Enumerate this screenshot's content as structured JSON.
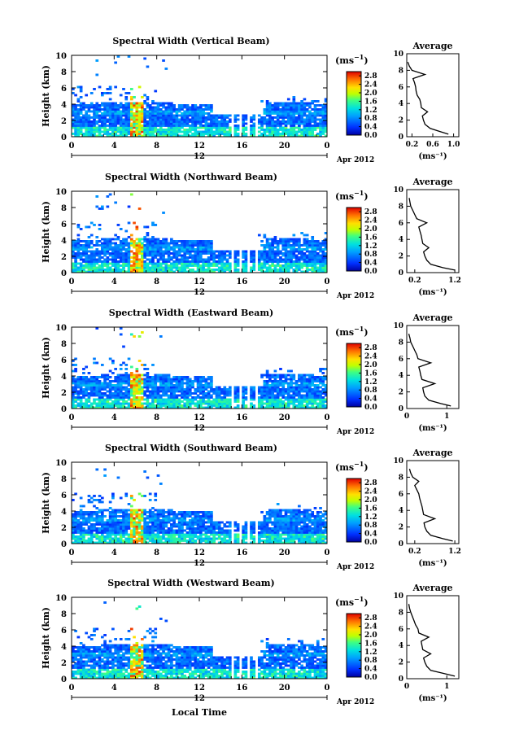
{
  "figure": {
    "x_axis_label": "Local Time",
    "colorbar_unit_base": "(ms",
    "colorbar_unit_exp": "−1",
    "colorbar_unit_close": ")",
    "average_title": "Average",
    "average_unit": "(ms⁻¹)",
    "height_label": "Height (km)",
    "date_center": "12",
    "date_right": "Apr 2012"
  },
  "chart_data": [
    {
      "type": "heatmap",
      "title": "Spectral Width (Vertical Beam)",
      "xlabel": "",
      "ylabel": "Height (km)",
      "xlim": [
        0,
        24
      ],
      "ylim": [
        0,
        10
      ],
      "x_ticks": [
        "0",
        "4",
        "8",
        "12",
        "16",
        "20",
        "0"
      ],
      "y_ticks": [
        "0",
        "2",
        "4",
        "6",
        "8",
        "10"
      ],
      "colorbar": {
        "unit": "(ms⁻¹)",
        "ticks": [
          "0.0",
          "0.4",
          "0.8",
          "1.2",
          "1.6",
          "2.0",
          "2.4",
          "2.8"
        ],
        "range": [
          0,
          3.0
        ]
      },
      "average_profile": {
        "title": "Average",
        "xlabel": "(ms⁻¹)",
        "xlim": [
          0.1,
          1.1
        ],
        "x_ticks": [
          "0.2",
          "0.6",
          "1.0"
        ],
        "height": [
          0.3,
          0.6,
          1.0,
          1.5,
          2.0,
          2.5,
          3.0,
          3.5,
          4.0,
          4.5,
          5.0,
          5.5,
          6.0,
          6.5,
          7.0,
          7.5,
          8.0,
          8.5,
          9.0
        ],
        "width": [
          0.9,
          0.75,
          0.55,
          0.45,
          0.42,
          0.4,
          0.5,
          0.38,
          0.37,
          0.35,
          0.3,
          0.28,
          0.27,
          0.25,
          0.22,
          0.45,
          0.2,
          0.15,
          0.12
        ]
      }
    },
    {
      "type": "heatmap",
      "title": "Spectral Width (Northward Beam)",
      "xlabel": "",
      "ylabel": "Height (km)",
      "xlim": [
        0,
        24
      ],
      "ylim": [
        0,
        10
      ],
      "x_ticks": [
        "0",
        "4",
        "8",
        "12",
        "16",
        "20",
        "0"
      ],
      "y_ticks": [
        "0",
        "2",
        "4",
        "6",
        "8",
        "10"
      ],
      "colorbar": {
        "unit": "(ms⁻¹)",
        "ticks": [
          "0.0",
          "0.4",
          "0.8",
          "1.2",
          "1.6",
          "2.0",
          "2.4",
          "2.8"
        ],
        "range": [
          0,
          3.0
        ]
      },
      "average_profile": {
        "title": "Average",
        "xlabel": "(ms⁻¹)",
        "xlim": [
          0.0,
          1.3
        ],
        "x_ticks": [
          "0.2",
          "1.2"
        ],
        "height": [
          0.3,
          0.6,
          1.0,
          1.5,
          2.0,
          2.5,
          3.0,
          3.5,
          4.0,
          4.5,
          5.0,
          5.5,
          6.0,
          6.5,
          7.0,
          7.5,
          8.0,
          8.5,
          9.0
        ],
        "width": [
          1.2,
          0.9,
          0.6,
          0.5,
          0.45,
          0.42,
          0.55,
          0.4,
          0.38,
          0.36,
          0.33,
          0.3,
          0.5,
          0.25,
          0.2,
          0.15,
          0.1,
          0.08,
          0.06
        ]
      }
    },
    {
      "type": "heatmap",
      "title": "Spectral Width (Eastward Beam)",
      "xlabel": "",
      "ylabel": "Height (km)",
      "xlim": [
        0,
        24
      ],
      "ylim": [
        0,
        10
      ],
      "x_ticks": [
        "0",
        "4",
        "8",
        "12",
        "16",
        "20",
        "0"
      ],
      "y_ticks": [
        "0",
        "2",
        "4",
        "6",
        "8",
        "10"
      ],
      "colorbar": {
        "unit": "(ms⁻¹)",
        "ticks": [
          "0.0",
          "0.4",
          "0.8",
          "1.2",
          "1.6",
          "2.0",
          "2.4",
          "2.8"
        ],
        "range": [
          0,
          3.0
        ]
      },
      "average_profile": {
        "title": "Average",
        "xlabel": "(ms⁻¹)",
        "xlim": [
          0.0,
          1.3
        ],
        "x_ticks": [
          "0",
          "1"
        ],
        "height": [
          0.3,
          0.6,
          1.0,
          1.5,
          2.0,
          2.5,
          3.0,
          3.5,
          4.0,
          4.5,
          5.0,
          5.5,
          6.0,
          6.5,
          7.0,
          7.5,
          8.0,
          8.5,
          9.0
        ],
        "width": [
          1.1,
          0.85,
          0.55,
          0.45,
          0.42,
          0.4,
          0.7,
          0.38,
          0.35,
          0.33,
          0.3,
          0.6,
          0.28,
          0.25,
          0.2,
          0.15,
          0.1,
          0.08,
          0.05
        ]
      }
    },
    {
      "type": "heatmap",
      "title": "Spectral Width (Southward Beam)",
      "xlabel": "",
      "ylabel": "Height (km)",
      "xlim": [
        0,
        24
      ],
      "ylim": [
        0,
        10
      ],
      "x_ticks": [
        "0",
        "4",
        "8",
        "12",
        "16",
        "20",
        "0"
      ],
      "y_ticks": [
        "0",
        "2",
        "4",
        "6",
        "8",
        "10"
      ],
      "colorbar": {
        "unit": "(ms⁻¹)",
        "ticks": [
          "0.0",
          "0.4",
          "0.8",
          "1.2",
          "1.6",
          "2.0",
          "2.4",
          "2.8"
        ],
        "range": [
          0,
          3.0
        ]
      },
      "average_profile": {
        "title": "Average",
        "xlabel": "(ms⁻¹)",
        "xlim": [
          0.0,
          1.3
        ],
        "x_ticks": [
          "0.2",
          "1.2"
        ],
        "height": [
          0.3,
          0.6,
          1.0,
          1.5,
          2.0,
          2.5,
          3.0,
          3.5,
          4.0,
          4.5,
          5.0,
          5.5,
          6.0,
          6.5,
          7.0,
          7.5,
          8.0,
          8.5,
          9.0
        ],
        "width": [
          1.15,
          0.9,
          0.6,
          0.5,
          0.45,
          0.43,
          0.7,
          0.42,
          0.4,
          0.38,
          0.35,
          0.32,
          0.3,
          0.25,
          0.2,
          0.3,
          0.15,
          0.1,
          0.07
        ]
      }
    },
    {
      "type": "heatmap",
      "title": "Spectral Width (Westward Beam)",
      "xlabel": "Local Time",
      "ylabel": "Height (km)",
      "xlim": [
        0,
        24
      ],
      "ylim": [
        0,
        10
      ],
      "x_ticks": [
        "0",
        "4",
        "8",
        "12",
        "16",
        "20",
        "0"
      ],
      "y_ticks": [
        "0",
        "2",
        "4",
        "6",
        "8",
        "10"
      ],
      "colorbar": {
        "unit": "(ms⁻¹)",
        "ticks": [
          "0.0",
          "0.4",
          "0.8",
          "1.2",
          "1.6",
          "2.0",
          "2.4",
          "2.8"
        ],
        "range": [
          0,
          3.0
        ]
      },
      "average_profile": {
        "title": "Average",
        "xlabel": "(ms⁻¹)",
        "xlim": [
          0.0,
          1.3
        ],
        "x_ticks": [
          "0",
          "1"
        ],
        "height": [
          0.3,
          0.6,
          1.0,
          1.5,
          2.0,
          2.5,
          3.0,
          3.5,
          4.0,
          4.5,
          5.0,
          5.5,
          6.0,
          6.5,
          7.0,
          7.5,
          8.0,
          8.5,
          9.0
        ],
        "width": [
          1.2,
          0.95,
          0.6,
          0.5,
          0.45,
          0.42,
          0.6,
          0.4,
          0.38,
          0.36,
          0.55,
          0.3,
          0.28,
          0.22,
          0.18,
          0.14,
          0.1,
          0.07,
          0.05
        ]
      }
    }
  ]
}
